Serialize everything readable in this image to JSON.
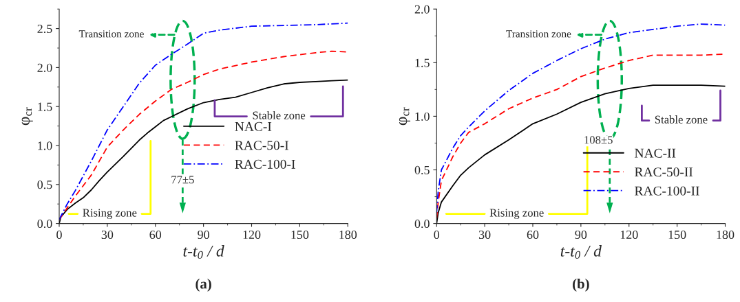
{
  "chart_data": [
    {
      "type": "line",
      "title": "(a)",
      "xlabel": "t-t$_{0}$ / d",
      "ylabel": "φ$_{cr}$",
      "xlim": [
        0,
        180
      ],
      "xticks": [
        0,
        30,
        60,
        90,
        120,
        150,
        180
      ],
      "ylim": [
        0,
        2.75
      ],
      "yticks": [
        {
          "value": 0,
          "label": "0.0"
        },
        0.5,
        {
          "value": 1,
          "label": "1.0"
        },
        1.5,
        {
          "value": 2,
          "label": "2.0"
        },
        2.5
      ],
      "grid": false,
      "legend": "lower right",
      "annotations": [
        "Transition zone",
        "Rising zone",
        {
          "text": "Stable zone",
          "x": 97,
          "y": 1.58
        },
        "77±5"
      ],
      "ref_lines": [
        {
          "axis": "x",
          "value": 77,
          "color": "#00b050",
          "line_style": "dashed"
        }
      ],
      "series": [
        {
          "name": "NAC-I",
          "color": "#000000",
          "line_style": "solid",
          "x": [
            0,
            1,
            5,
            10,
            15,
            20,
            25,
            30,
            40,
            50,
            55,
            60,
            65,
            70,
            80,
            90,
            100,
            110,
            120,
            130,
            140,
            150,
            160,
            170,
            180
          ],
          "values": [
            0,
            0.08,
            0.18,
            0.26,
            0.33,
            0.43,
            0.55,
            0.66,
            0.86,
            1.07,
            1.16,
            1.24,
            1.32,
            1.37,
            1.47,
            1.55,
            1.59,
            1.62,
            1.68,
            1.74,
            1.79,
            1.81,
            1.82,
            1.83,
            1.84
          ]
        },
        {
          "name": "RAC-50-I",
          "color": "#ff0000",
          "line_style": "dashed",
          "x": [
            0,
            5,
            10,
            20,
            30,
            40,
            50,
            60,
            70,
            80,
            90,
            100,
            120,
            140,
            160,
            170,
            180
          ],
          "values": [
            0.05,
            0.2,
            0.35,
            0.62,
            0.98,
            1.2,
            1.4,
            1.57,
            1.72,
            1.81,
            1.91,
            1.98,
            2.07,
            2.14,
            2.19,
            2.21,
            2.2
          ]
        },
        {
          "name": "RAC-100-I",
          "color": "#0000ff",
          "line_style": "dashdot",
          "x": [
            0,
            5,
            10,
            20,
            30,
            40,
            50,
            60,
            70,
            80,
            90,
            100,
            120,
            140,
            160,
            180
          ],
          "values": [
            0.05,
            0.25,
            0.42,
            0.8,
            1.2,
            1.5,
            1.8,
            2.03,
            2.17,
            2.3,
            2.44,
            2.48,
            2.53,
            2.54,
            2.55,
            2.57
          ]
        }
      ]
    },
    {
      "type": "line",
      "title": "(b)",
      "xlabel": "t-t$_{0}$ / d",
      "ylabel": "φ$_{cr}$",
      "xlim": [
        0,
        180
      ],
      "xticks": [
        0,
        30,
        60,
        90,
        120,
        150,
        180
      ],
      "ylim": [
        0,
        2.0
      ],
      "yticks": [
        {
          "value": 0,
          "label": "0.0"
        },
        0.5,
        {
          "value": 1,
          "label": "1.0"
        },
        1.5,
        {
          "value": 2,
          "label": "2.0"
        }
      ],
      "grid": false,
      "legend": "lower right",
      "annotations": [
        "Transition zone",
        "Rising zone",
        "Stable zone",
        "108±5"
      ],
      "ref_lines": [
        {
          "axis": "x",
          "value": 108,
          "color": "#00b050",
          "line_style": "dashed"
        }
      ],
      "series": [
        {
          "name": "NAC-II",
          "color": "#000000",
          "line_style": "solid",
          "x": [
            0,
            1,
            3,
            10,
            15,
            20,
            30,
            45,
            60,
            75,
            90,
            105,
            120,
            135,
            150,
            165,
            180
          ],
          "values": [
            0,
            0.1,
            0.2,
            0.35,
            0.45,
            0.52,
            0.64,
            0.78,
            0.93,
            1.02,
            1.13,
            1.21,
            1.26,
            1.29,
            1.29,
            1.29,
            1.28
          ]
        },
        {
          "name": "RAC-50-II",
          "color": "#ff0000",
          "line_style": "dashed",
          "x": [
            0,
            1,
            3,
            10,
            15,
            20,
            30,
            45,
            60,
            75,
            90,
            105,
            120,
            135,
            150,
            165,
            180
          ],
          "values": [
            0.05,
            0.2,
            0.4,
            0.62,
            0.75,
            0.85,
            0.93,
            1.07,
            1.17,
            1.25,
            1.37,
            1.45,
            1.52,
            1.57,
            1.57,
            1.57,
            1.58
          ]
        },
        {
          "name": "RAC-100-II",
          "color": "#0000ff",
          "line_style": "dashdot",
          "x": [
            0,
            1,
            3,
            10,
            15,
            20,
            30,
            45,
            60,
            75,
            90,
            105,
            120,
            135,
            150,
            165,
            180
          ],
          "values": [
            0.1,
            0.3,
            0.5,
            0.7,
            0.82,
            0.9,
            1.05,
            1.24,
            1.4,
            1.52,
            1.63,
            1.72,
            1.78,
            1.81,
            1.84,
            1.86,
            1.85
          ]
        }
      ]
    }
  ]
}
